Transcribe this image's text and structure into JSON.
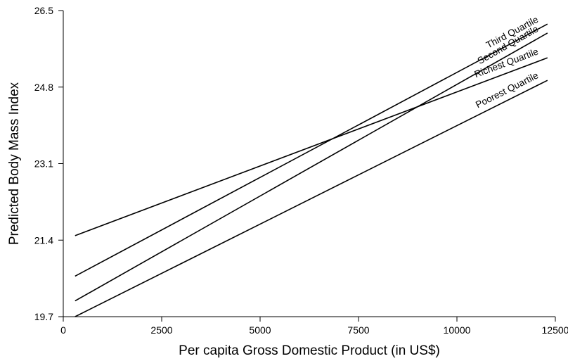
{
  "chart_data": {
    "type": "line",
    "title": "",
    "xlabel": "Per capita Gross Domestic Product (in US$)",
    "ylabel": "Predicted Body Mass Index",
    "xlim": [
      0,
      12500
    ],
    "ylim": [
      19.7,
      26.5
    ],
    "xticks": [
      0,
      2500,
      5000,
      7500,
      10000,
      12500
    ],
    "yticks": [
      19.7,
      21.4,
      23.1,
      24.8,
      26.5
    ],
    "xtick_labels": [
      "0",
      "2500",
      "5000",
      "7500",
      "10000",
      "12500"
    ],
    "ytick_labels": [
      "19.7",
      "21.4",
      "23.1",
      "24.8",
      "26.5"
    ],
    "grid": false,
    "legend": "none (series labeled at line ends)",
    "series": [
      {
        "name": "Third Quartile",
        "x": [
          300,
          12300
        ],
        "y": [
          20.6,
          26.2
        ]
      },
      {
        "name": "Second Quartile",
        "x": [
          300,
          12300
        ],
        "y": [
          20.05,
          26.0
        ]
      },
      {
        "name": "Richest Quartile",
        "x": [
          300,
          12300
        ],
        "y": [
          21.5,
          25.45
        ]
      },
      {
        "name": "Poorest Quartile",
        "x": [
          300,
          12300
        ],
        "y": [
          19.7,
          24.95
        ]
      }
    ]
  }
}
